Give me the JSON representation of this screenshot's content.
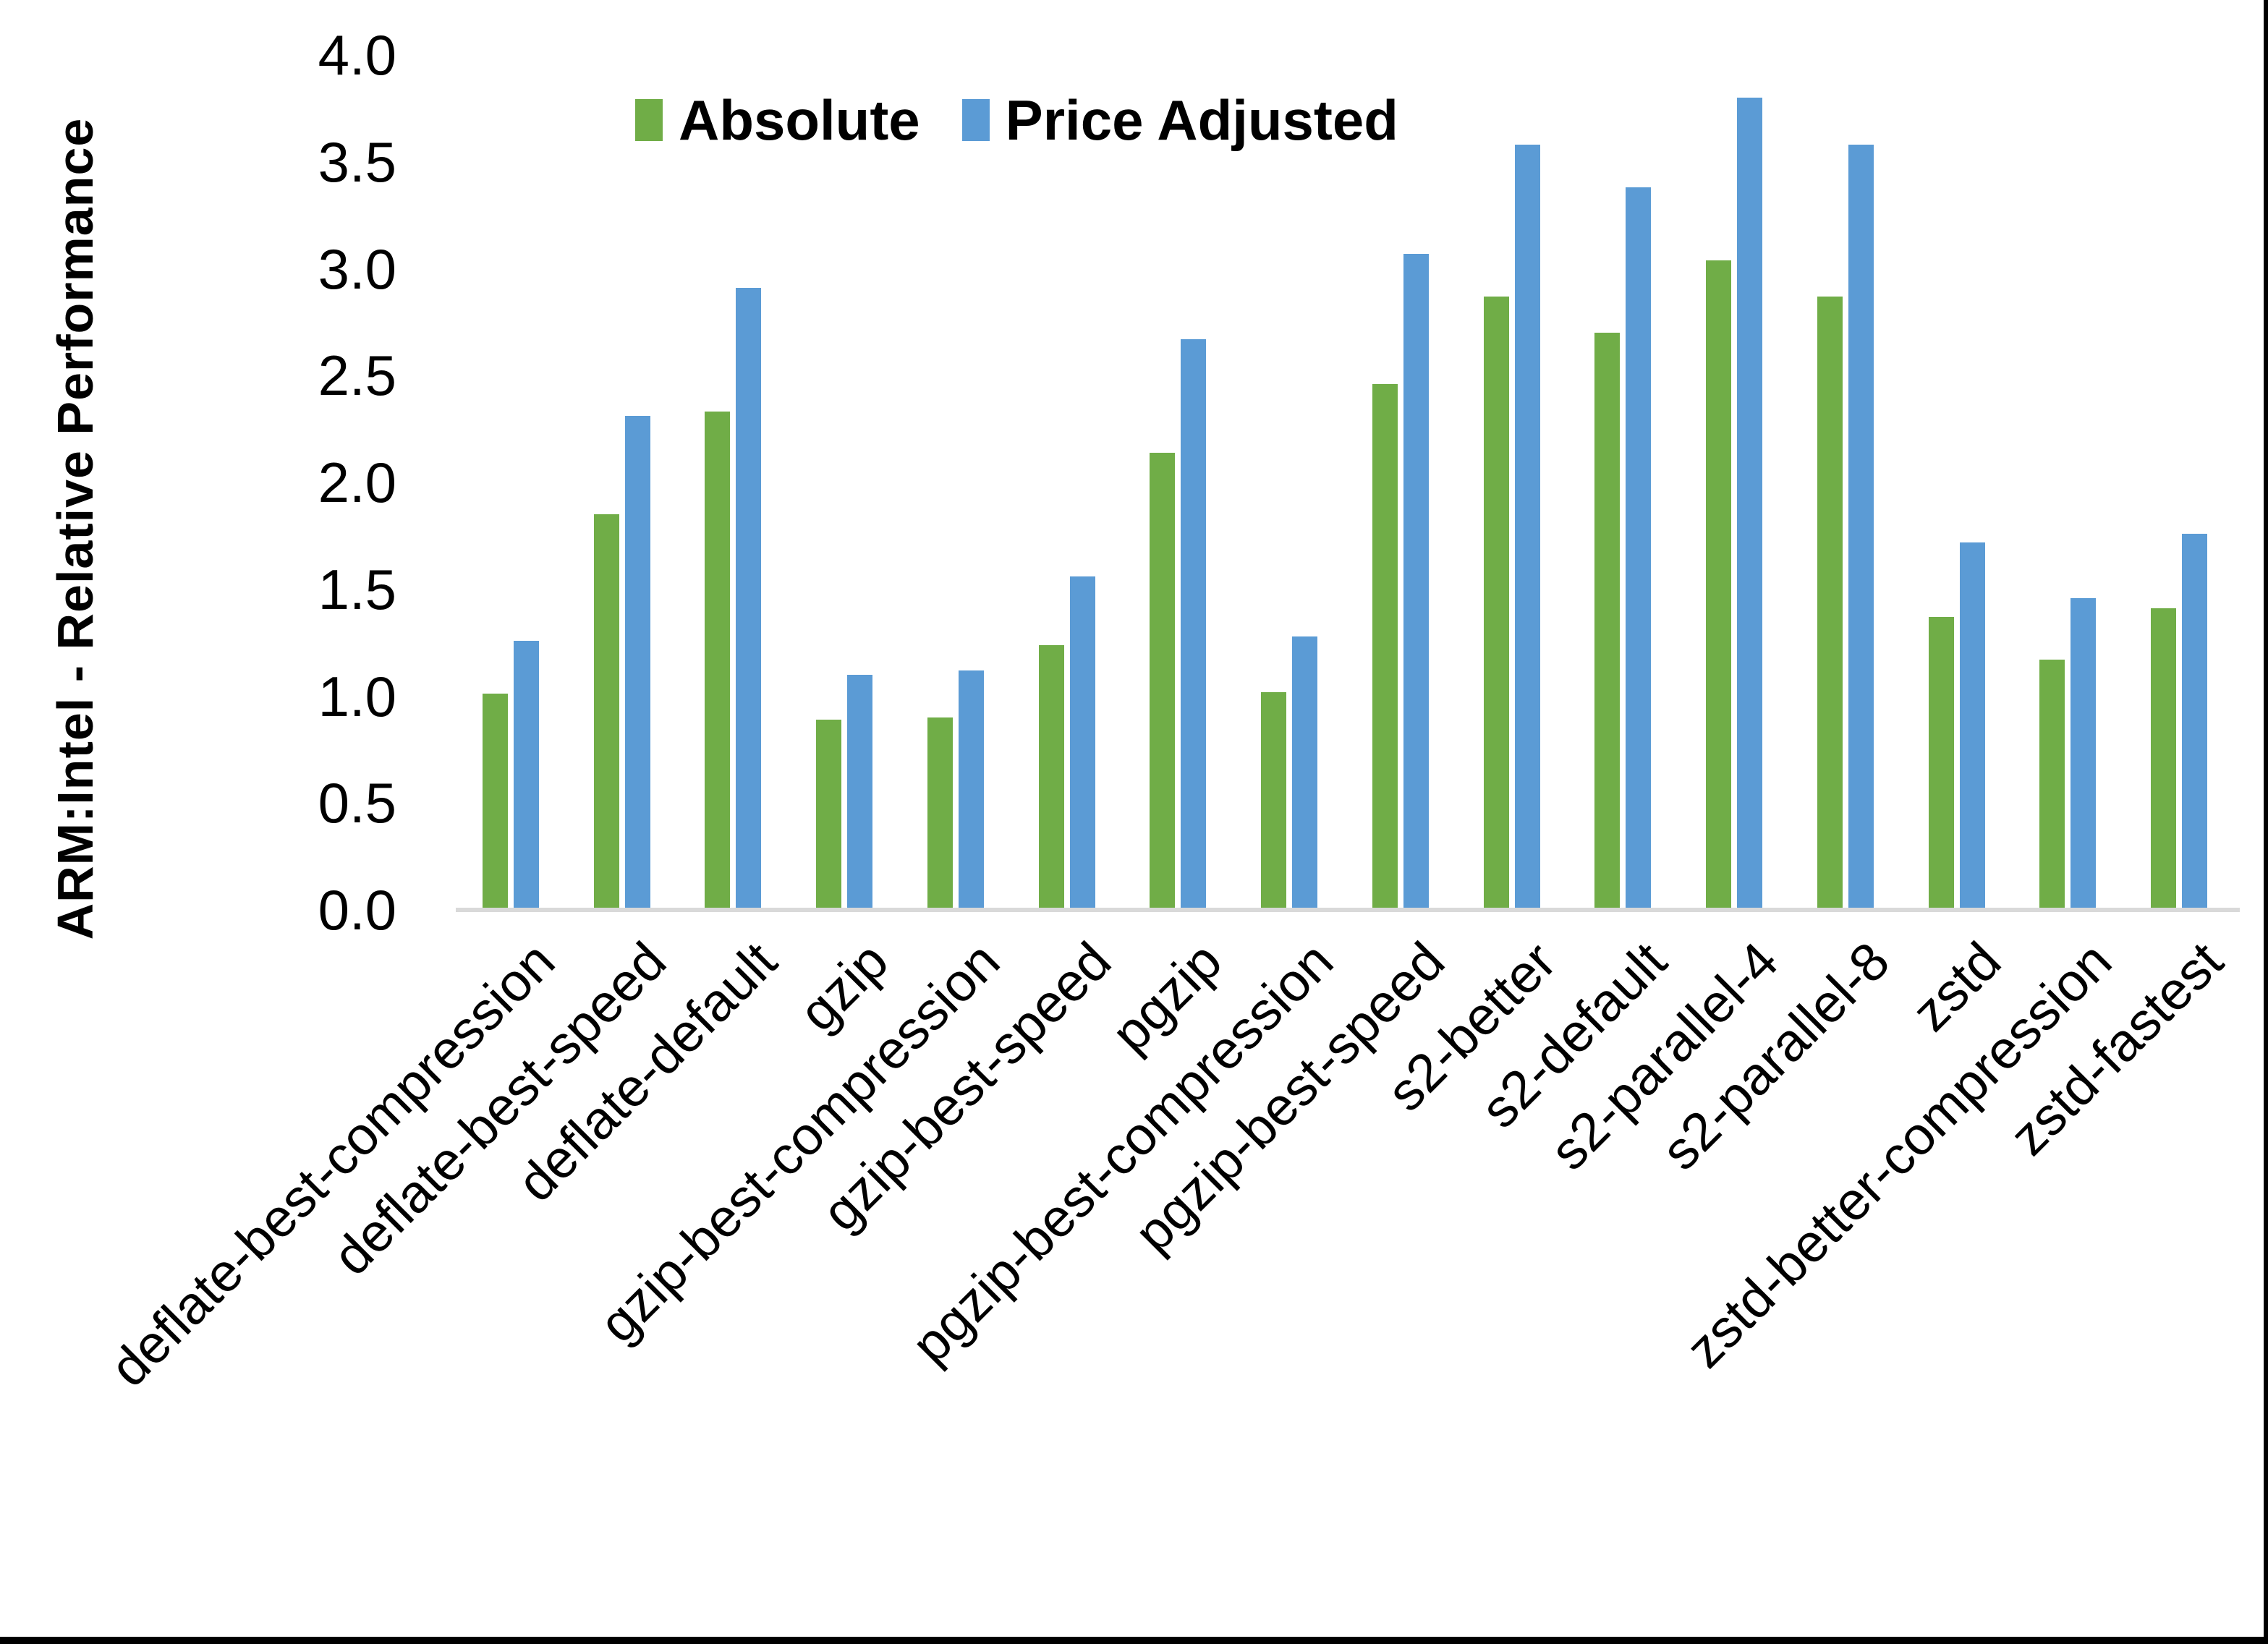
{
  "figure": {
    "background": "#FFFFFF",
    "border_bottom_color": "#000000",
    "border_right_color": "#000000"
  },
  "chart_data": {
    "type": "bar",
    "title": "",
    "xlabel": "",
    "ylabel": "ARM:Intel - Relative Performance",
    "ylim": [
      0.0,
      4.0
    ],
    "ytick_step": 0.5,
    "ytick_labels": [
      "0.0",
      "0.5",
      "1.0",
      "1.5",
      "2.0",
      "2.5",
      "3.0",
      "3.5",
      "4.0"
    ],
    "grid": "off",
    "legend_position": "top-center-inside",
    "axis_line_color": "#D9D9D9",
    "text_color": "#000000",
    "categories": [
      "deflate-best-compression",
      "deflate-best-speed",
      "deflate-default",
      "gzip",
      "gzip-best-compression",
      "gzip-best-speed",
      "pgzip",
      "pgzip-best-compression",
      "pgzip-best-speed",
      "s2-better",
      "s2-default",
      "s2-parallel-4",
      "s2-parallel-8",
      "zstd",
      "zstd-better-compression",
      "zstd-fastest"
    ],
    "series": [
      {
        "name": "Absolute",
        "color": "#70AD47",
        "values": [
          1.0,
          1.84,
          2.32,
          0.88,
          0.89,
          1.23,
          2.13,
          1.01,
          2.45,
          2.86,
          2.69,
          3.03,
          2.86,
          1.36,
          1.16,
          1.4
        ]
      },
      {
        "name": "Price Adjusted",
        "color": "#5B9BD5",
        "values": [
          1.25,
          2.3,
          2.9,
          1.09,
          1.11,
          1.55,
          2.66,
          1.27,
          3.06,
          3.57,
          3.37,
          3.79,
          3.57,
          1.71,
          1.45,
          1.75
        ]
      }
    ]
  }
}
